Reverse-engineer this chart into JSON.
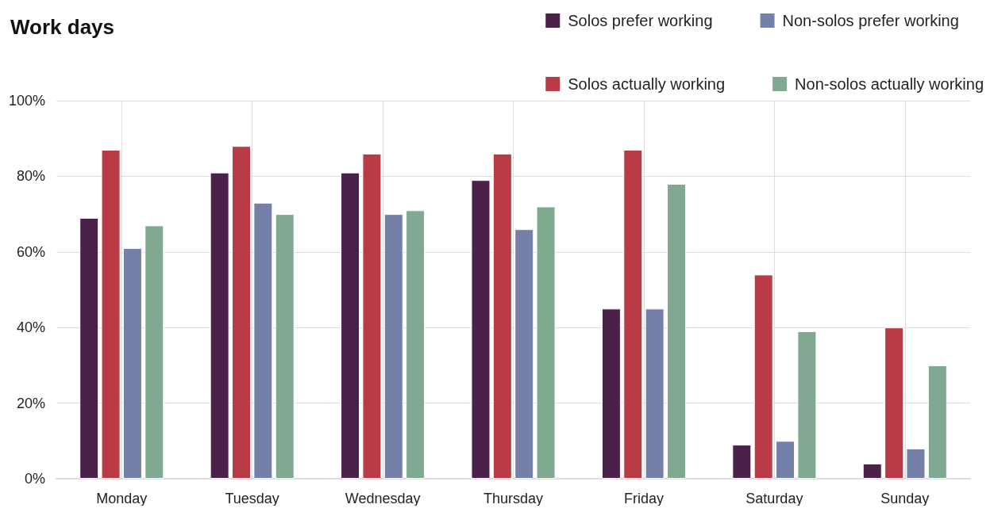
{
  "chart_data": {
    "type": "bar",
    "title": "Work days",
    "categories": [
      "Monday",
      "Tuesday",
      "Wednesday",
      "Thursday",
      "Friday",
      "Saturday",
      "Sunday"
    ],
    "series": [
      {
        "name": "Solos prefer working",
        "color": "#4a2249",
        "values": [
          69,
          81,
          81,
          79,
          45,
          9,
          4
        ]
      },
      {
        "name": "Solos actually working",
        "color": "#b83b45",
        "values": [
          87,
          88,
          86,
          86,
          87,
          54,
          40
        ]
      },
      {
        "name": "Non-solos prefer working",
        "color": "#7580a9",
        "values": [
          61,
          73,
          70,
          66,
          45,
          10,
          8
        ]
      },
      {
        "name": "Non-solos actually working",
        "color": "#80a992",
        "values": [
          67,
          70,
          71,
          72,
          78,
          39,
          30
        ]
      }
    ],
    "ylim": [
      0,
      100
    ],
    "yticks": [
      {
        "value": 0,
        "label": "0%"
      },
      {
        "value": 20,
        "label": "20%"
      },
      {
        "value": 40,
        "label": "40%"
      },
      {
        "value": 60,
        "label": "60%"
      },
      {
        "value": 80,
        "label": "80%"
      },
      {
        "value": 100,
        "label": "100%"
      }
    ],
    "grid": true,
    "legend": "top right"
  }
}
